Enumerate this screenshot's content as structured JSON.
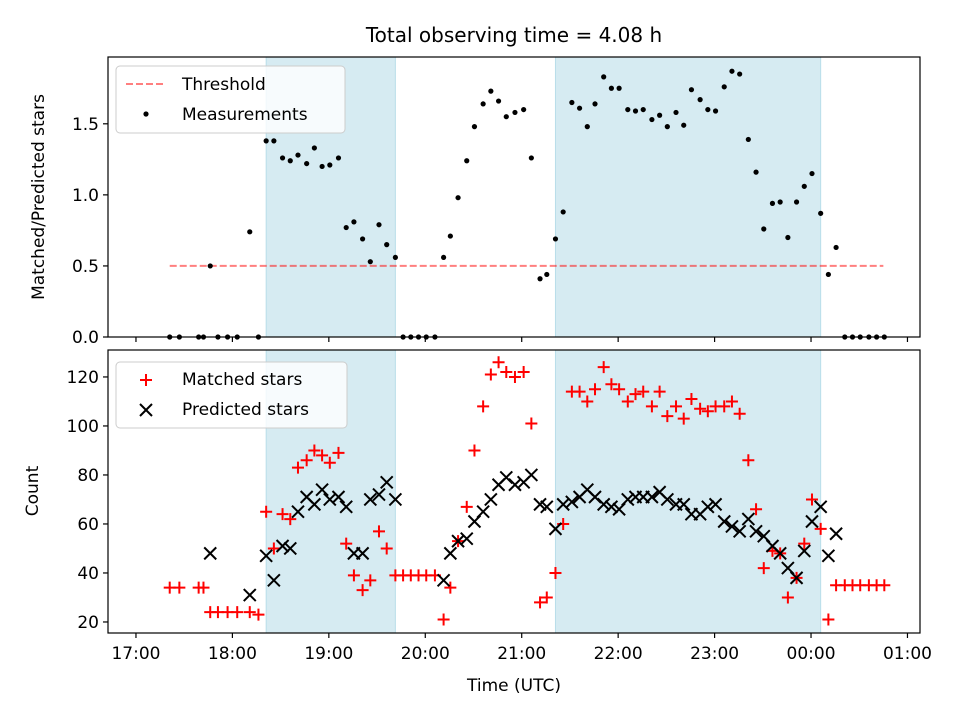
{
  "chart_data": {
    "type": "scatter",
    "title": "Total observing time = 4.08 h",
    "xlabel": "Time (UTC)",
    "x_units": "hours after 17:00 UTC",
    "xlim": [
      -0.29,
      8.13
    ],
    "xticks": [
      {
        "v": 0,
        "label": "17:00"
      },
      {
        "v": 1,
        "label": "18:00"
      },
      {
        "v": 2,
        "label": "19:00"
      },
      {
        "v": 3,
        "label": "20:00"
      },
      {
        "v": 4,
        "label": "21:00"
      },
      {
        "v": 5,
        "label": "22:00"
      },
      {
        "v": 6,
        "label": "23:00"
      },
      {
        "v": 7,
        "label": "00:00"
      },
      {
        "v": 8,
        "label": "01:00"
      }
    ],
    "colors": {
      "shade": "#add8e6",
      "threshold": "#ff0000",
      "measurement": "#000000",
      "matched": "#ff0000",
      "predicted": "#000000"
    },
    "shaded_intervals": [
      [
        1.35,
        2.69
      ],
      [
        4.35,
        7.1
      ]
    ],
    "top_panel": {
      "ylabel": "Matched/Predicted stars",
      "ylim": [
        0,
        1.97
      ],
      "yticks": [
        {
          "v": 0,
          "label": "0.0"
        },
        {
          "v": 0.5,
          "label": "0.5"
        },
        {
          "v": 1.0,
          "label": "1.0"
        },
        {
          "v": 1.5,
          "label": "1.5"
        }
      ],
      "legend": {
        "position": "top-left",
        "threshold_label": "Threshold",
        "measurement_label": "Measurements"
      },
      "threshold": {
        "value": 0.5,
        "x_range": [
          0.35,
          7.75
        ]
      },
      "measurements": [
        [
          0.35,
          0
        ],
        [
          0.45,
          0
        ],
        [
          0.65,
          0
        ],
        [
          0.7,
          0
        ],
        [
          0.77,
          0.5
        ],
        [
          0.85,
          0
        ],
        [
          0.95,
          0
        ],
        [
          1.05,
          0
        ],
        [
          1.18,
          0.74
        ],
        [
          1.27,
          0
        ],
        [
          1.35,
          1.38
        ],
        [
          1.43,
          1.38
        ],
        [
          1.52,
          1.26
        ],
        [
          1.6,
          1.24
        ],
        [
          1.68,
          1.28
        ],
        [
          1.77,
          1.22
        ],
        [
          1.85,
          1.33
        ],
        [
          1.93,
          1.2
        ],
        [
          2.01,
          1.21
        ],
        [
          2.1,
          1.26
        ],
        [
          2.18,
          0.77
        ],
        [
          2.26,
          0.81
        ],
        [
          2.35,
          0.69
        ],
        [
          2.43,
          0.53
        ],
        [
          2.52,
          0.79
        ],
        [
          2.6,
          0.65
        ],
        [
          2.69,
          0.56
        ],
        [
          2.77,
          0
        ],
        [
          2.85,
          0
        ],
        [
          2.93,
          0
        ],
        [
          3.01,
          0
        ],
        [
          3.1,
          0
        ],
        [
          3.19,
          0.56
        ],
        [
          3.26,
          0.71
        ],
        [
          3.34,
          0.98
        ],
        [
          3.43,
          1.24
        ],
        [
          3.51,
          1.48
        ],
        [
          3.6,
          1.64
        ],
        [
          3.68,
          1.73
        ],
        [
          3.76,
          1.66
        ],
        [
          3.84,
          1.55
        ],
        [
          3.93,
          1.58
        ],
        [
          4.02,
          1.6
        ],
        [
          4.1,
          1.26
        ],
        [
          4.19,
          0.41
        ],
        [
          4.26,
          0.44
        ],
        [
          4.35,
          0.69
        ],
        [
          4.43,
          0.88
        ],
        [
          4.52,
          1.65
        ],
        [
          4.6,
          1.61
        ],
        [
          4.68,
          1.48
        ],
        [
          4.76,
          1.64
        ],
        [
          4.85,
          1.83
        ],
        [
          4.93,
          1.75
        ],
        [
          5.01,
          1.75
        ],
        [
          5.1,
          1.6
        ],
        [
          5.18,
          1.59
        ],
        [
          5.26,
          1.6
        ],
        [
          5.35,
          1.53
        ],
        [
          5.43,
          1.56
        ],
        [
          5.51,
          1.48
        ],
        [
          5.6,
          1.58
        ],
        [
          5.68,
          1.49
        ],
        [
          5.76,
          1.74
        ],
        [
          5.85,
          1.67
        ],
        [
          5.93,
          1.6
        ],
        [
          6.01,
          1.59
        ],
        [
          6.1,
          1.76
        ],
        [
          6.18,
          1.87
        ],
        [
          6.26,
          1.85
        ],
        [
          6.35,
          1.39
        ],
        [
          6.43,
          1.16
        ],
        [
          6.51,
          0.76
        ],
        [
          6.6,
          0.94
        ],
        [
          6.68,
          0.95
        ],
        [
          6.76,
          0.7
        ],
        [
          6.85,
          0.95
        ],
        [
          6.93,
          1.06
        ],
        [
          7.01,
          1.15
        ],
        [
          7.1,
          0.87
        ],
        [
          7.18,
          0.44
        ],
        [
          7.26,
          0.63
        ],
        [
          7.35,
          0
        ],
        [
          7.43,
          0
        ],
        [
          7.51,
          0
        ],
        [
          7.6,
          0
        ],
        [
          7.68,
          0
        ],
        [
          7.76,
          0
        ]
      ]
    },
    "bottom_panel": {
      "ylabel": "Count",
      "ylim": [
        15.5,
        131
      ],
      "yticks": [
        {
          "v": 20,
          "label": "20"
        },
        {
          "v": 40,
          "label": "40"
        },
        {
          "v": 60,
          "label": "60"
        },
        {
          "v": 80,
          "label": "80"
        },
        {
          "v": 100,
          "label": "100"
        },
        {
          "v": 120,
          "label": "120"
        }
      ],
      "legend": {
        "position": "top-left",
        "matched_label": "Matched stars",
        "predicted_label": "Predicted stars"
      },
      "matched": [
        [
          0.35,
          34
        ],
        [
          0.45,
          34
        ],
        [
          0.65,
          34
        ],
        [
          0.7,
          34
        ],
        [
          0.77,
          24
        ],
        [
          0.85,
          24
        ],
        [
          0.95,
          24
        ],
        [
          1.05,
          24
        ],
        [
          1.18,
          24
        ],
        [
          1.27,
          23
        ],
        [
          1.35,
          65
        ],
        [
          1.43,
          50
        ],
        [
          1.52,
          64
        ],
        [
          1.6,
          62
        ],
        [
          1.68,
          83
        ],
        [
          1.77,
          86
        ],
        [
          1.85,
          90
        ],
        [
          1.93,
          88
        ],
        [
          2.01,
          85
        ],
        [
          2.1,
          89
        ],
        [
          2.18,
          52
        ],
        [
          2.26,
          39
        ],
        [
          2.35,
          33
        ],
        [
          2.43,
          37
        ],
        [
          2.52,
          57
        ],
        [
          2.6,
          50
        ],
        [
          2.69,
          39
        ],
        [
          2.77,
          39
        ],
        [
          2.85,
          39
        ],
        [
          2.93,
          39
        ],
        [
          3.01,
          39
        ],
        [
          3.1,
          39
        ],
        [
          3.19,
          21
        ],
        [
          3.26,
          34
        ],
        [
          3.34,
          53
        ],
        [
          3.43,
          67
        ],
        [
          3.51,
          90
        ],
        [
          3.6,
          108
        ],
        [
          3.68,
          121
        ],
        [
          3.76,
          126
        ],
        [
          3.84,
          122
        ],
        [
          3.93,
          120
        ],
        [
          4.02,
          122
        ],
        [
          4.1,
          101
        ],
        [
          4.19,
          28
        ],
        [
          4.26,
          30
        ],
        [
          4.35,
          40
        ],
        [
          4.43,
          60
        ],
        [
          4.52,
          114
        ],
        [
          4.6,
          114
        ],
        [
          4.68,
          110
        ],
        [
          4.76,
          115
        ],
        [
          4.85,
          124
        ],
        [
          4.93,
          117
        ],
        [
          5.01,
          115
        ],
        [
          5.1,
          110
        ],
        [
          5.18,
          113
        ],
        [
          5.26,
          114
        ],
        [
          5.35,
          108
        ],
        [
          5.43,
          114
        ],
        [
          5.51,
          104
        ],
        [
          5.6,
          108
        ],
        [
          5.68,
          103
        ],
        [
          5.76,
          111
        ],
        [
          5.85,
          107
        ],
        [
          5.93,
          106
        ],
        [
          6.01,
          108
        ],
        [
          6.1,
          108
        ],
        [
          6.18,
          110
        ],
        [
          6.26,
          105
        ],
        [
          6.35,
          86
        ],
        [
          6.43,
          66
        ],
        [
          6.51,
          42
        ],
        [
          6.6,
          49
        ],
        [
          6.68,
          48
        ],
        [
          6.76,
          30
        ],
        [
          6.85,
          38
        ],
        [
          6.93,
          52
        ],
        [
          7.01,
          70
        ],
        [
          7.1,
          58
        ],
        [
          7.18,
          21
        ],
        [
          7.26,
          35
        ],
        [
          7.35,
          35
        ],
        [
          7.43,
          35
        ],
        [
          7.51,
          35
        ],
        [
          7.6,
          35
        ],
        [
          7.68,
          35
        ],
        [
          7.76,
          35
        ]
      ],
      "predicted": [
        [
          0.77,
          48
        ],
        [
          1.18,
          31
        ],
        [
          1.35,
          47
        ],
        [
          1.43,
          37
        ],
        [
          1.52,
          51
        ],
        [
          1.6,
          50
        ],
        [
          1.68,
          65
        ],
        [
          1.77,
          71
        ],
        [
          1.85,
          68
        ],
        [
          1.93,
          74
        ],
        [
          2.01,
          70
        ],
        [
          2.1,
          71
        ],
        [
          2.18,
          67
        ],
        [
          2.26,
          48
        ],
        [
          2.35,
          48
        ],
        [
          2.43,
          70
        ],
        [
          2.52,
          72
        ],
        [
          2.6,
          77
        ],
        [
          2.69,
          70
        ],
        [
          3.19,
          37
        ],
        [
          3.26,
          48
        ],
        [
          3.34,
          53
        ],
        [
          3.43,
          54
        ],
        [
          3.51,
          61
        ],
        [
          3.6,
          65
        ],
        [
          3.68,
          70
        ],
        [
          3.76,
          76
        ],
        [
          3.84,
          79
        ],
        [
          3.93,
          76
        ],
        [
          4.02,
          77
        ],
        [
          4.1,
          80
        ],
        [
          4.19,
          68
        ],
        [
          4.26,
          67
        ],
        [
          4.35,
          58
        ],
        [
          4.43,
          68
        ],
        [
          4.52,
          69
        ],
        [
          4.6,
          71
        ],
        [
          4.68,
          74
        ],
        [
          4.76,
          71
        ],
        [
          4.85,
          68
        ],
        [
          4.93,
          67
        ],
        [
          5.01,
          66
        ],
        [
          5.1,
          70
        ],
        [
          5.18,
          71
        ],
        [
          5.26,
          71
        ],
        [
          5.35,
          71
        ],
        [
          5.43,
          73
        ],
        [
          5.51,
          70
        ],
        [
          5.6,
          68
        ],
        [
          5.68,
          68
        ],
        [
          5.76,
          64
        ],
        [
          5.85,
          64
        ],
        [
          5.93,
          67
        ],
        [
          6.01,
          68
        ],
        [
          6.1,
          61
        ],
        [
          6.18,
          59
        ],
        [
          6.26,
          57
        ],
        [
          6.35,
          62
        ],
        [
          6.43,
          57
        ],
        [
          6.51,
          55
        ],
        [
          6.6,
          51
        ],
        [
          6.68,
          48
        ],
        [
          6.76,
          42
        ],
        [
          6.85,
          38
        ],
        [
          6.93,
          49
        ],
        [
          7.01,
          61
        ],
        [
          7.1,
          67
        ],
        [
          7.18,
          47
        ],
        [
          7.26,
          56
        ]
      ]
    }
  }
}
